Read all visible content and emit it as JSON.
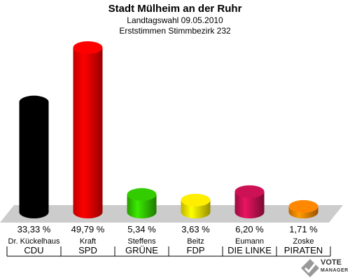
{
  "header": {
    "title": "Stadt Mülheim an der Ruhr",
    "line1": "Landtagswahl 09.05.2010",
    "line2": "Erststimmen Stimmbezirk 232"
  },
  "logo": {
    "name": "VOTE",
    "sub": "MANAGER",
    "icon": "vote-manager-logo"
  },
  "chart_data": {
    "type": "bar",
    "title": "Stadt Mülheim an der Ruhr",
    "categories": [
      "CDU",
      "SPD",
      "GRÜNE",
      "FDP",
      "DIE LINKE",
      "PIRATEN"
    ],
    "candidates": [
      "Dr. Kückelhaus",
      "Kraft",
      "Steffens",
      "Beitz",
      "Eumann",
      "Zoske"
    ],
    "values": [
      33.33,
      49.79,
      5.34,
      3.63,
      6.2,
      1.71
    ],
    "value_labels": [
      "33,33 %",
      "49,79 %",
      "5,34 %",
      "3,63 %",
      "6,20 %",
      "1,71 %"
    ],
    "colors": [
      "#000000",
      "#ff0000",
      "#33cc00",
      "#ffee00",
      "#cc1155",
      "#ff8800"
    ],
    "ylim": [
      0,
      50
    ],
    "grid": false,
    "legend": "none"
  }
}
